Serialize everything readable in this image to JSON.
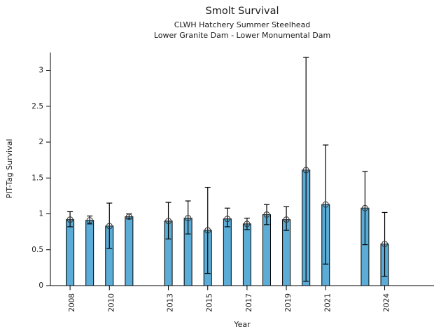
{
  "header": {
    "title": "Smolt Survival",
    "subtitle1": "CLWH Hatchery Summer Steelhead",
    "subtitle2": "Lower Granite Dam - Lower Monumental Dam"
  },
  "chart_data": {
    "type": "bar",
    "title": "Smolt Survival",
    "subtitle": [
      "CLWH Hatchery Summer Steelhead",
      "Lower Granite Dam - Lower Monumental Dam"
    ],
    "xlabel": "Year",
    "ylabel": "PIT-Tag Survival",
    "ylim": [
      0,
      3.3
    ],
    "xlim": [
      2007,
      2026.5
    ],
    "yticks": [
      0,
      0.5,
      1,
      1.5,
      2,
      2.5,
      3
    ],
    "ytick_labels": [
      "0",
      "0.5",
      "1",
      "1.5",
      "2",
      "2.5",
      "3"
    ],
    "xticks": [
      2008,
      2010,
      2013,
      2015,
      2017,
      2019,
      2021,
      2024
    ],
    "xtick_labels": [
      "2008",
      "2010",
      "2013",
      "2015",
      "2017",
      "2019",
      "2021",
      "2024"
    ],
    "grid": false,
    "legend": null,
    "style": {
      "bar_fill": "#5BACD6",
      "bar_edge": "#000000",
      "error_color": "#000000",
      "marker": "open-circle-cross",
      "marker_color": "#3a3a3a",
      "text_color": "#1a1a1a"
    },
    "series": [
      {
        "name": "PIT-Tag Survival",
        "points": [
          {
            "year": 2008,
            "value": 0.92,
            "err_low": 0.82,
            "err_high": 1.03
          },
          {
            "year": 2009,
            "value": 0.91,
            "err_low": 0.86,
            "err_high": 0.97
          },
          {
            "year": 2010,
            "value": 0.83,
            "err_low": 0.52,
            "err_high": 1.15
          },
          {
            "year": 2011,
            "value": 0.96,
            "err_low": 0.93,
            "err_high": 1.0
          },
          {
            "year": 2013,
            "value": 0.9,
            "err_low": 0.65,
            "err_high": 1.16
          },
          {
            "year": 2014,
            "value": 0.94,
            "err_low": 0.72,
            "err_high": 1.18
          },
          {
            "year": 2015,
            "value": 0.77,
            "err_low": 0.17,
            "err_high": 1.37
          },
          {
            "year": 2016,
            "value": 0.93,
            "err_low": 0.82,
            "err_high": 1.08
          },
          {
            "year": 2017,
            "value": 0.86,
            "err_low": 0.78,
            "err_high": 0.94
          },
          {
            "year": 2018,
            "value": 0.99,
            "err_low": 0.85,
            "err_high": 1.13
          },
          {
            "year": 2019,
            "value": 0.92,
            "err_low": 0.77,
            "err_high": 1.1
          },
          {
            "year": 2020,
            "value": 1.61,
            "err_low": 0.06,
            "err_high": 3.18
          },
          {
            "year": 2021,
            "value": 1.13,
            "err_low": 0.3,
            "err_high": 1.96
          },
          {
            "year": 2023,
            "value": 1.08,
            "err_low": 0.57,
            "err_high": 1.59
          },
          {
            "year": 2024,
            "value": 0.58,
            "err_low": 0.13,
            "err_high": 1.02
          }
        ]
      }
    ]
  }
}
